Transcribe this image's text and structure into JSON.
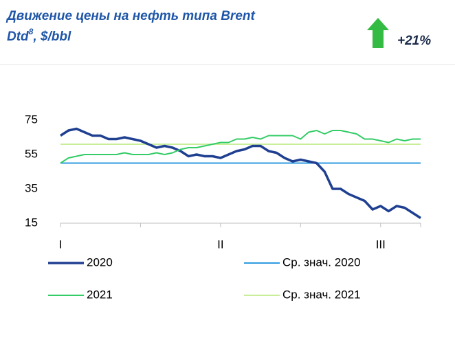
{
  "chart_data": {
    "type": "line",
    "title": "Движение цены на нефть типа  Brent",
    "title_line2": "Dtd",
    "title_superscript": "8",
    "title_suffix": ", $/bbl",
    "annotation": "+21%",
    "categories": [
      "I",
      null,
      null,
      null,
      null,
      null,
      null,
      null,
      null,
      null,
      null,
      null,
      null,
      null,
      null,
      null,
      null,
      null,
      null,
      null,
      "II",
      null,
      null,
      null,
      null,
      null,
      null,
      null,
      null,
      null,
      null,
      null,
      null,
      null,
      null,
      null,
      null,
      null,
      null,
      null,
      "III",
      null,
      null,
      null,
      null,
      null
    ],
    "xticks": [
      0,
      10,
      20,
      30,
      40,
      45
    ],
    "ylim": [
      15,
      75
    ],
    "yticks": [
      15,
      35,
      55,
      75
    ],
    "series": [
      {
        "name": "2020",
        "color": "#1f3f91",
        "values": [
          66,
          69,
          70,
          68,
          66,
          66,
          64,
          64,
          65,
          64,
          63,
          61,
          59,
          60,
          59,
          57,
          54,
          55,
          54,
          54,
          53,
          55,
          57,
          58,
          60,
          60,
          57,
          56,
          53,
          51,
          52,
          51,
          50,
          45,
          35,
          35,
          32,
          30,
          28,
          23,
          25,
          22,
          25,
          24,
          21,
          18
        ]
      },
      {
        "name": "2021",
        "color": "#33cc66",
        "values": [
          50,
          53,
          54,
          55,
          55,
          55,
          55,
          55,
          56,
          55,
          55,
          55,
          56,
          55,
          56,
          58,
          59,
          59,
          60,
          61,
          62,
          62,
          64,
          64,
          65,
          64,
          66,
          66,
          66,
          66,
          64,
          68,
          69,
          67,
          69,
          69,
          68,
          67,
          64,
          64,
          63,
          62,
          64,
          63,
          64,
          64
        ]
      }
    ],
    "averages": [
      {
        "name": "Ср. знач. 2020",
        "color": "#2f9be0",
        "value": 50
      },
      {
        "name": "Ср. знач. 2021",
        "color": "#c8ee9a",
        "value": 61
      }
    ]
  }
}
